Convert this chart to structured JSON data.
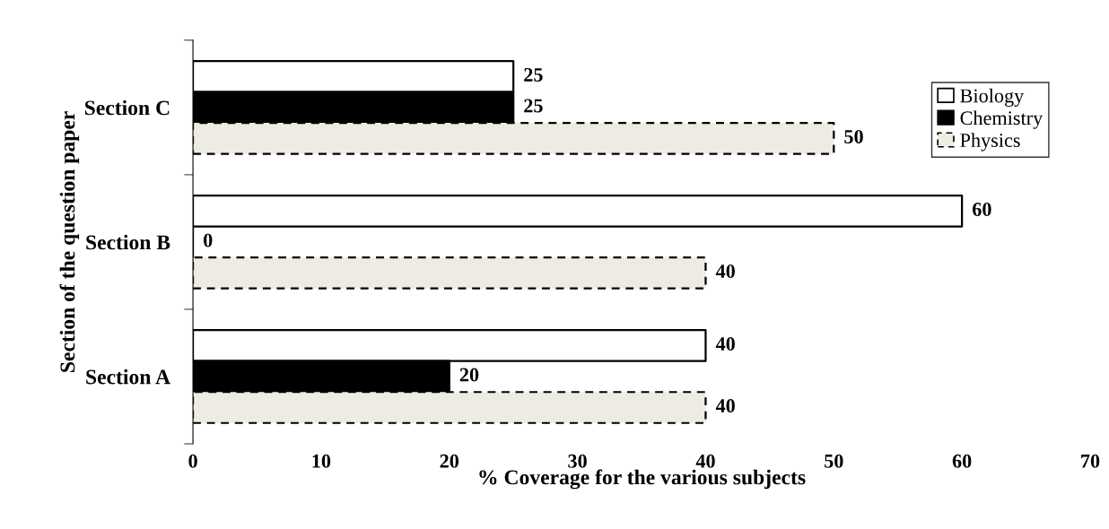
{
  "chart_data": {
    "type": "bar",
    "orientation": "horizontal",
    "xlabel": "% Coverage for the various subjects",
    "ylabel": "Section of the question paper",
    "categories": [
      "Section C",
      "Section B",
      "Section A"
    ],
    "series": [
      {
        "name": "Biology",
        "color": "#ffffff",
        "values": [
          25,
          60,
          40
        ]
      },
      {
        "name": "Chemistry",
        "color": "#000000",
        "values": [
          25,
          0,
          20
        ]
      },
      {
        "name": "Physics",
        "color": "#eeebe3",
        "values": [
          50,
          40,
          40
        ],
        "line_style": "dashed"
      }
    ],
    "xlim": [
      0,
      70
    ],
    "xticks": [
      0,
      10,
      20,
      30,
      40,
      50,
      60,
      70
    ],
    "data_labels": true,
    "legend": "top right",
    "grid": false
  }
}
